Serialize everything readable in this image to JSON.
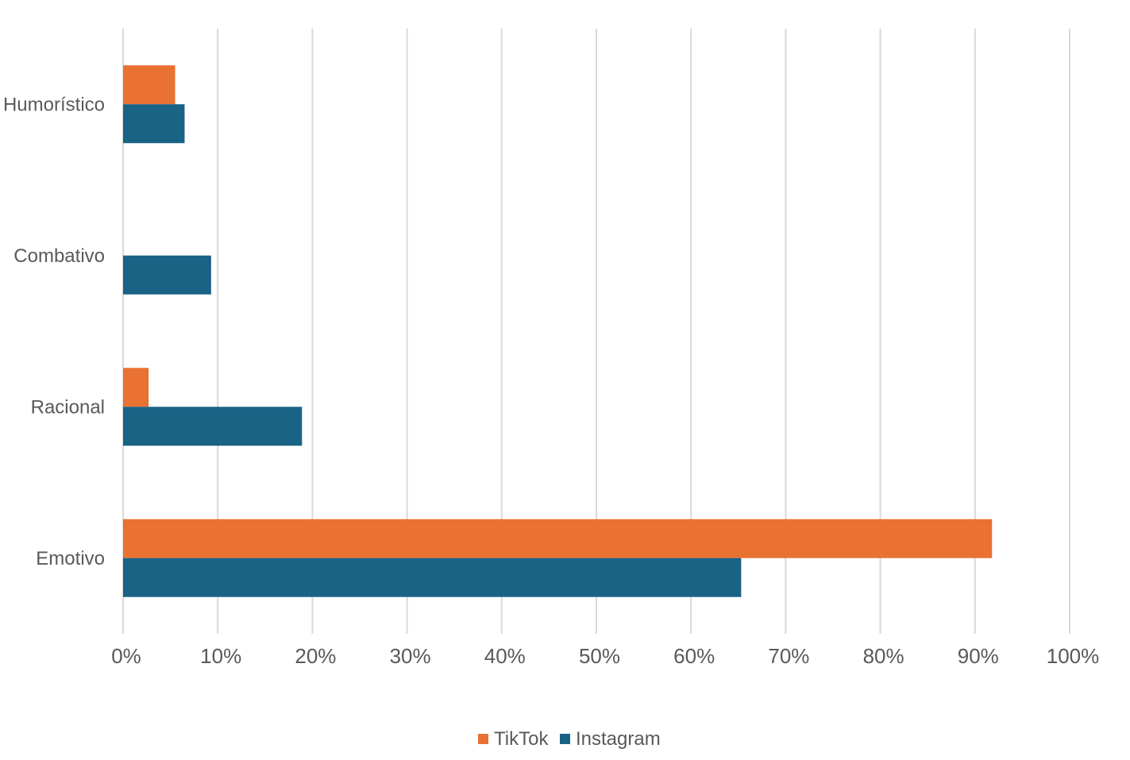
{
  "chart_data": {
    "type": "bar",
    "orientation": "horizontal",
    "categories": [
      "Humorístico",
      "Combativo",
      "Racional",
      "Emotivo"
    ],
    "series": [
      {
        "name": "TikTok",
        "color": "#E97132",
        "values": [
          5.5,
          0,
          2.7,
          91.8
        ]
      },
      {
        "name": "Instagram",
        "color": "#196384",
        "values": [
          6.5,
          9.3,
          18.9,
          65.3
        ]
      }
    ],
    "x_ticks": [
      "0%",
      "10%",
      "20%",
      "30%",
      "40%",
      "50%",
      "60%",
      "70%",
      "80%",
      "90%",
      "100%"
    ],
    "xlim": [
      0,
      100
    ],
    "grid": true,
    "legend_position": "bottom"
  }
}
